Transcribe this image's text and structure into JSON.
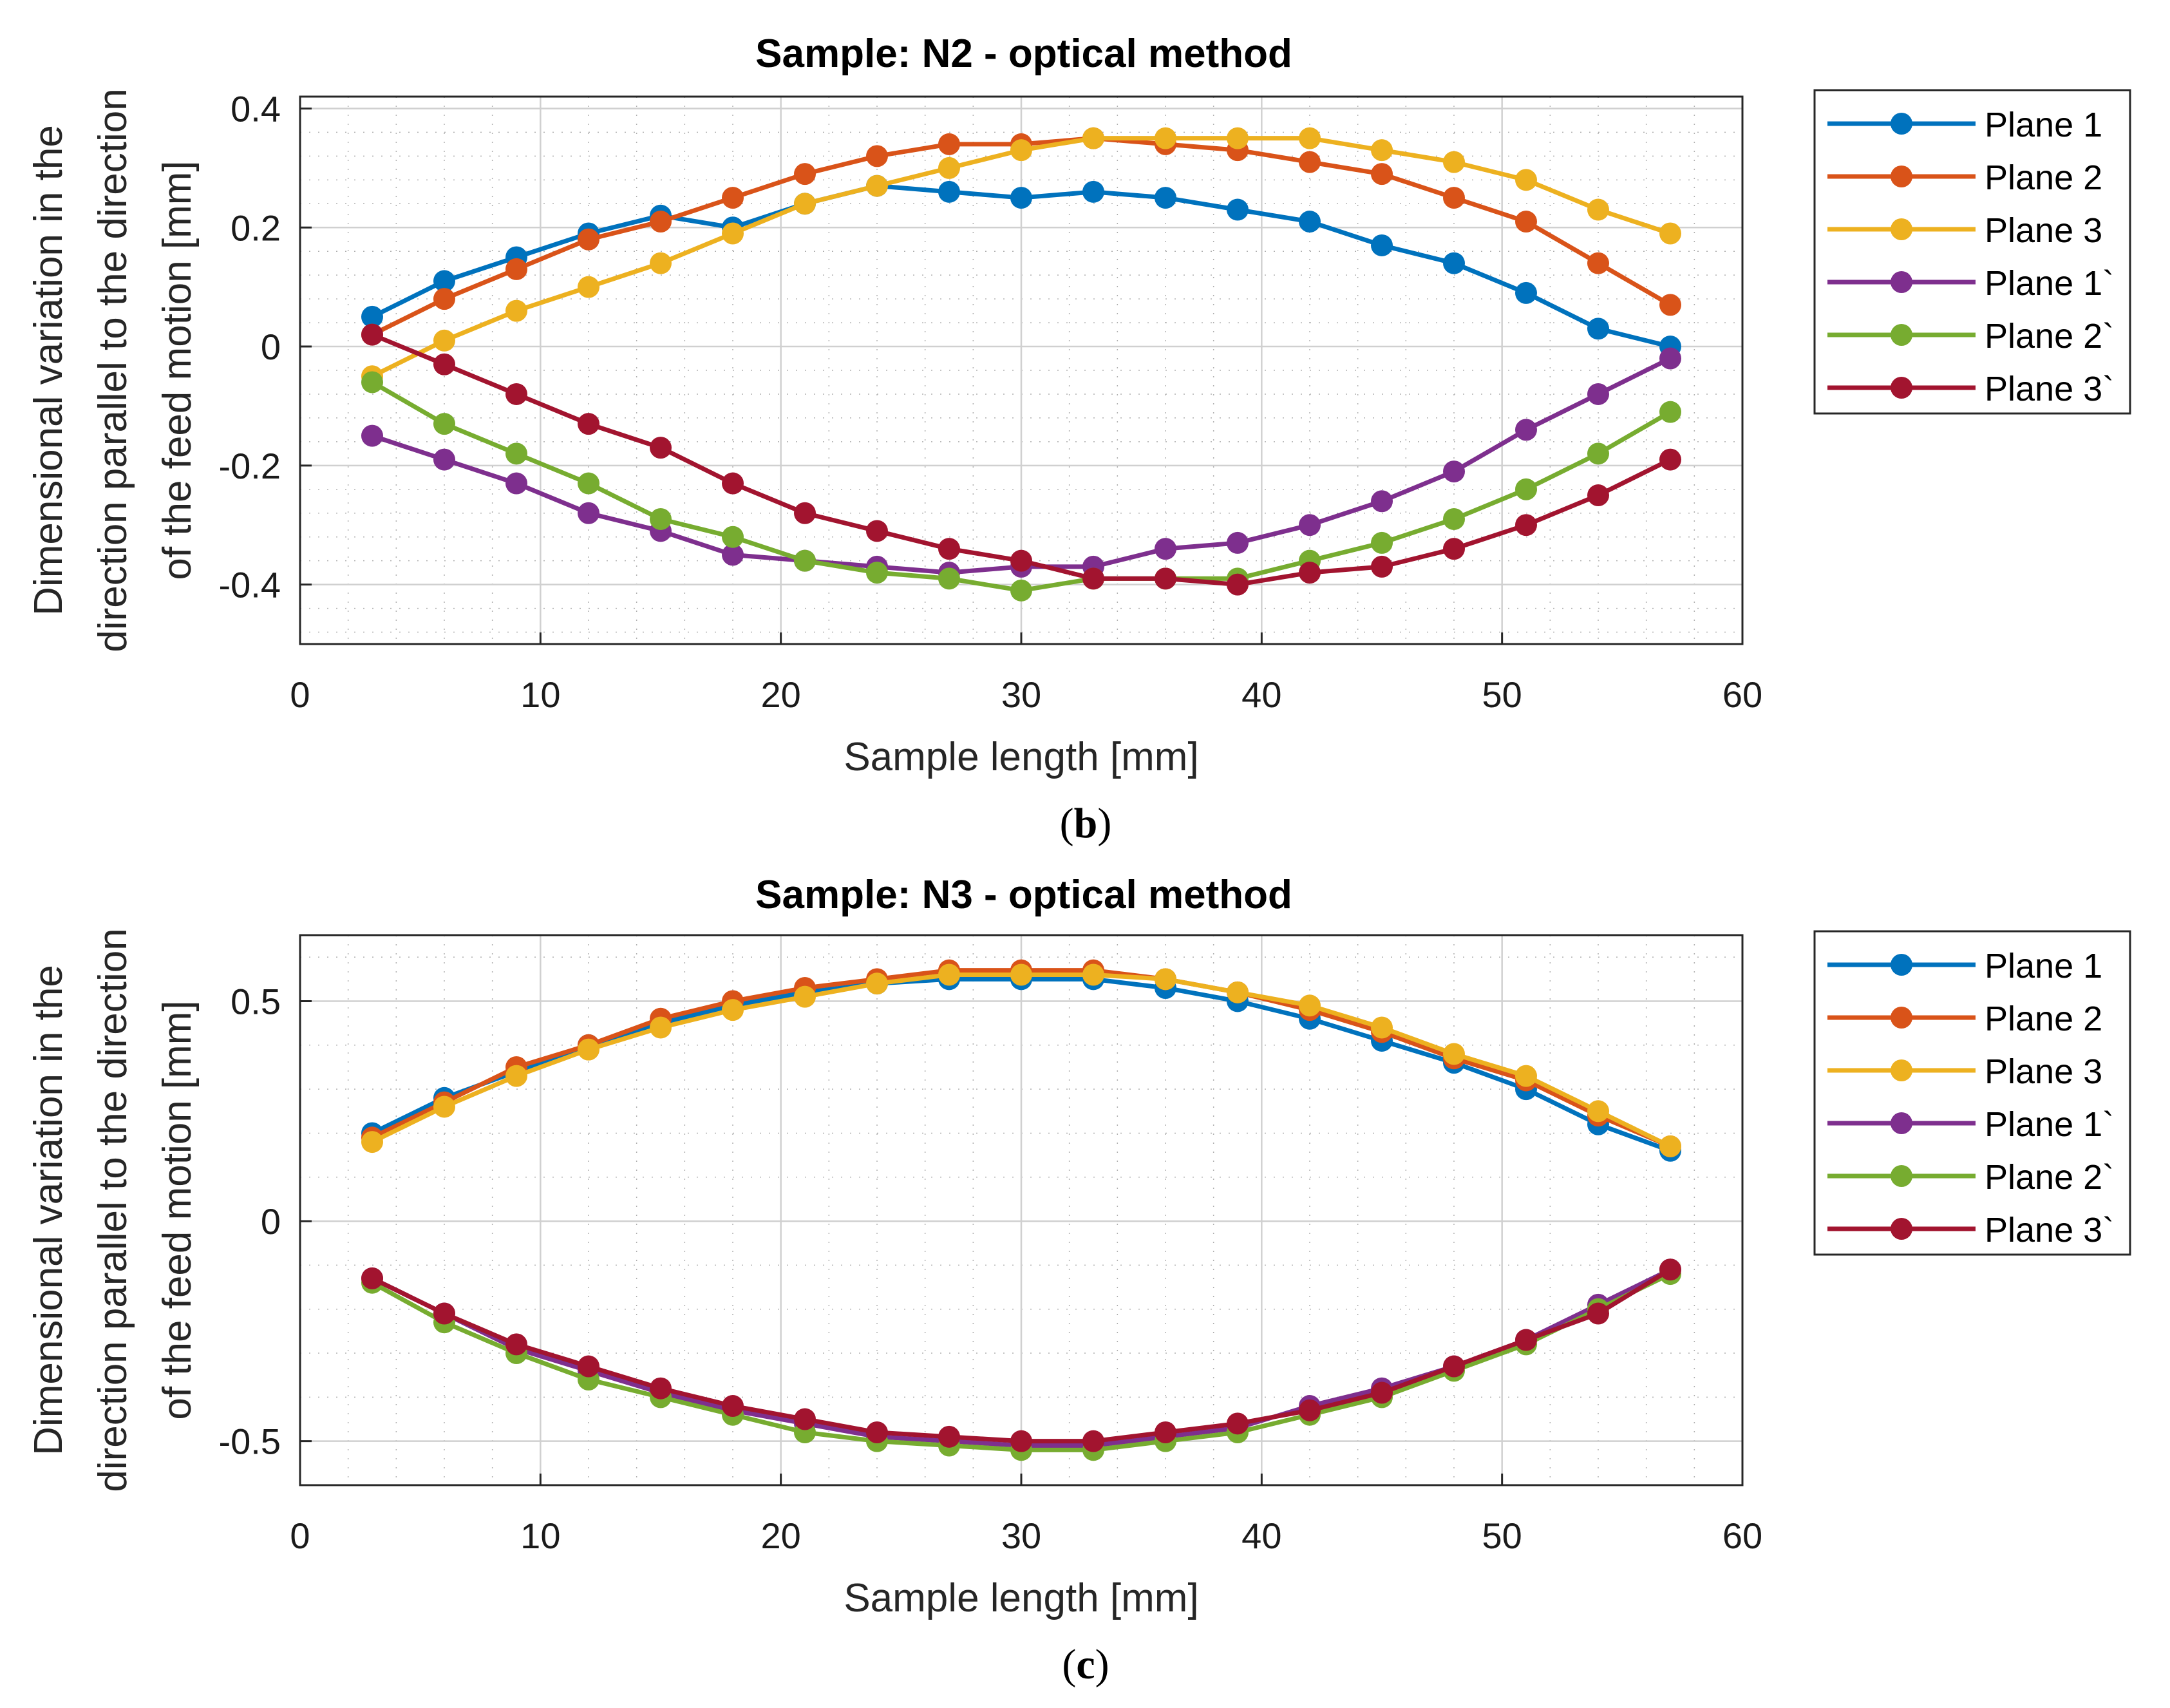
{
  "colors": {
    "plane1": "#0072BD",
    "plane2": "#D95319",
    "plane3": "#EDB120",
    "plane1p": "#7E2F8E",
    "plane2p": "#77AC30",
    "plane3p": "#A2142F",
    "grid_major": "#d0d0d0",
    "grid_minor": "#b0b0b0",
    "axes": "#262626"
  },
  "chart_data": [
    {
      "type": "line",
      "title": "Sample: N2 - optical method",
      "xlabel": "Sample length [mm]",
      "ylabel": [
        "Dimensional variation in the",
        "direction parallel to the direction",
        "of the feed motion [mm]"
      ],
      "xlim": [
        0,
        60
      ],
      "ylim": [
        -0.5,
        0.42
      ],
      "xticks": [
        0,
        10,
        20,
        30,
        40,
        50,
        60
      ],
      "xtick_labels": [
        "0",
        "10",
        "20",
        "30",
        "40",
        "50",
        "60"
      ],
      "yticks": [
        -0.4,
        -0.2,
        0,
        0.2,
        0.4
      ],
      "ytick_labels": [
        "-0.4",
        "-0.2",
        "0",
        "0.2",
        "0.4"
      ],
      "grid": true,
      "legend_position": "outside-right",
      "caption_letter": "b",
      "x": [
        3,
        6,
        9,
        12,
        15,
        18,
        21,
        24,
        27,
        30,
        33,
        36,
        39,
        42,
        45,
        48,
        51,
        54,
        57
      ],
      "series": [
        {
          "name": "Plane 1",
          "color_key": "plane1",
          "values": [
            0.05,
            0.11,
            0.15,
            0.19,
            0.22,
            0.2,
            0.24,
            0.27,
            0.26,
            0.25,
            0.26,
            0.25,
            0.23,
            0.21,
            0.17,
            0.14,
            0.09,
            0.03,
            0.0
          ]
        },
        {
          "name": "Plane 2",
          "color_key": "plane2",
          "values": [
            0.02,
            0.08,
            0.13,
            0.18,
            0.21,
            0.25,
            0.29,
            0.32,
            0.34,
            0.34,
            0.35,
            0.34,
            0.33,
            0.31,
            0.29,
            0.25,
            0.21,
            0.14,
            0.07
          ]
        },
        {
          "name": "Plane 3",
          "color_key": "plane3",
          "values": [
            -0.05,
            0.01,
            0.06,
            0.1,
            0.14,
            0.19,
            0.24,
            0.27,
            0.3,
            0.33,
            0.35,
            0.35,
            0.35,
            0.35,
            0.33,
            0.31,
            0.28,
            0.23,
            0.19
          ]
        },
        {
          "name": "Plane 1`",
          "color_key": "plane1p",
          "values": [
            -0.15,
            -0.19,
            -0.23,
            -0.28,
            -0.31,
            -0.35,
            -0.36,
            -0.37,
            -0.38,
            -0.37,
            -0.37,
            -0.34,
            -0.33,
            -0.3,
            -0.26,
            -0.21,
            -0.14,
            -0.08,
            -0.02
          ]
        },
        {
          "name": "Plane 2`",
          "color_key": "plane2p",
          "values": [
            -0.06,
            -0.13,
            -0.18,
            -0.23,
            -0.29,
            -0.32,
            -0.36,
            -0.38,
            -0.39,
            -0.41,
            -0.39,
            -0.39,
            -0.39,
            -0.36,
            -0.33,
            -0.29,
            -0.24,
            -0.18,
            -0.11
          ]
        },
        {
          "name": "Plane 3`",
          "color_key": "plane3p",
          "values": [
            0.02,
            -0.03,
            -0.08,
            -0.13,
            -0.17,
            -0.23,
            -0.28,
            -0.31,
            -0.34,
            -0.36,
            -0.39,
            -0.39,
            -0.4,
            -0.38,
            -0.37,
            -0.34,
            -0.3,
            -0.25,
            -0.19
          ]
        }
      ]
    },
    {
      "type": "line",
      "title": "Sample: N3 - optical method",
      "xlabel": "Sample length [mm]",
      "ylabel": [
        "Dimensional variation in the",
        "direction parallel to the direction",
        "of the feed motion [mm]"
      ],
      "xlim": [
        0,
        60
      ],
      "ylim": [
        -0.6,
        0.65
      ],
      "xticks": [
        0,
        10,
        20,
        30,
        40,
        50,
        60
      ],
      "xtick_labels": [
        "0",
        "10",
        "20",
        "30",
        "40",
        "50",
        "60"
      ],
      "yticks": [
        -0.5,
        0,
        0.5
      ],
      "ytick_labels": [
        "-0.5",
        "0",
        "0.5"
      ],
      "grid": true,
      "legend_position": "outside-right",
      "caption_letter": "c",
      "x": [
        3,
        6,
        9,
        12,
        15,
        18,
        21,
        24,
        27,
        30,
        33,
        36,
        39,
        42,
        45,
        48,
        51,
        54,
        57
      ],
      "series": [
        {
          "name": "Plane 1",
          "color_key": "plane1",
          "values": [
            0.2,
            0.28,
            0.34,
            0.4,
            0.45,
            0.49,
            0.52,
            0.54,
            0.55,
            0.55,
            0.55,
            0.53,
            0.5,
            0.46,
            0.41,
            0.36,
            0.3,
            0.22,
            0.16
          ]
        },
        {
          "name": "Plane 2",
          "color_key": "plane2",
          "values": [
            0.19,
            0.27,
            0.35,
            0.4,
            0.46,
            0.5,
            0.53,
            0.55,
            0.57,
            0.57,
            0.57,
            0.55,
            0.52,
            0.48,
            0.43,
            0.37,
            0.32,
            0.24,
            0.17
          ]
        },
        {
          "name": "Plane 3",
          "color_key": "plane3",
          "values": [
            0.18,
            0.26,
            0.33,
            0.39,
            0.44,
            0.48,
            0.51,
            0.54,
            0.56,
            0.56,
            0.56,
            0.55,
            0.52,
            0.49,
            0.44,
            0.38,
            0.33,
            0.25,
            0.17
          ]
        },
        {
          "name": "Plane 1`",
          "color_key": "plane1p",
          "values": [
            -0.13,
            -0.21,
            -0.29,
            -0.34,
            -0.39,
            -0.43,
            -0.46,
            -0.49,
            -0.5,
            -0.51,
            -0.51,
            -0.49,
            -0.47,
            -0.42,
            -0.38,
            -0.33,
            -0.27,
            -0.19,
            -0.11
          ]
        },
        {
          "name": "Plane 2`",
          "color_key": "plane2p",
          "values": [
            -0.14,
            -0.23,
            -0.3,
            -0.36,
            -0.4,
            -0.44,
            -0.48,
            -0.5,
            -0.51,
            -0.52,
            -0.52,
            -0.5,
            -0.48,
            -0.44,
            -0.4,
            -0.34,
            -0.28,
            -0.2,
            -0.12
          ]
        },
        {
          "name": "Plane 3`",
          "color_key": "plane3p",
          "values": [
            -0.13,
            -0.21,
            -0.28,
            -0.33,
            -0.38,
            -0.42,
            -0.45,
            -0.48,
            -0.49,
            -0.5,
            -0.5,
            -0.48,
            -0.46,
            -0.43,
            -0.39,
            -0.33,
            -0.27,
            -0.21,
            -0.11
          ]
        }
      ]
    }
  ]
}
